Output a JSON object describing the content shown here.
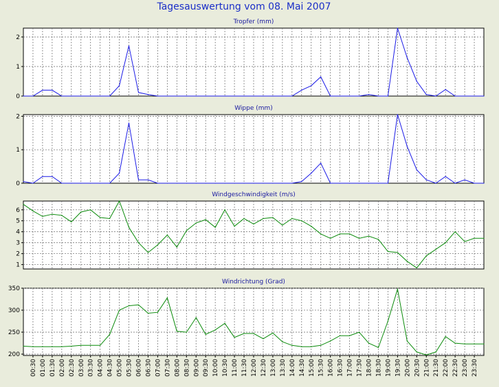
{
  "title": "Tagesauswertung vom 08. Mai 2007",
  "colors": {
    "blue": "#1a1ae6",
    "green": "#0a8a0a",
    "title": "#1a2ec8"
  },
  "x_tick_labels": [
    "00:30",
    "01:00",
    "01:30",
    "02:00",
    "02:30",
    "03:00",
    "03:30",
    "04:00",
    "04:30",
    "05:00",
    "05:30",
    "06:00",
    "06:30",
    "07:00",
    "07:30",
    "08:00",
    "08:30",
    "09:00",
    "09:30",
    "10:00",
    "10:30",
    "11:00",
    "11:30",
    "12:00",
    "12:30",
    "13:00",
    "13:30",
    "14:00",
    "14:30",
    "15:00",
    "15:30",
    "16:00",
    "16:30",
    "17:00",
    "17:30",
    "18:00",
    "18:30",
    "19:00",
    "19:30",
    "20:00",
    "20:30",
    "21:00",
    "21:30",
    "22:00",
    "22:30",
    "23:00",
    "23:30"
  ],
  "chart_data": [
    {
      "type": "line",
      "title": "Tropfer (mm)",
      "color": "#1a1ae6",
      "x": [
        "00:00",
        "00:30",
        "01:00",
        "01:30",
        "02:00",
        "02:30",
        "03:00",
        "03:30",
        "04:00",
        "04:30",
        "05:00",
        "05:30",
        "06:00",
        "06:30",
        "07:00",
        "07:30",
        "08:00",
        "08:30",
        "09:00",
        "09:30",
        "10:00",
        "10:30",
        "11:00",
        "11:30",
        "12:00",
        "12:30",
        "13:00",
        "13:30",
        "14:00",
        "14:30",
        "15:00",
        "15:30",
        "16:00",
        "16:30",
        "17:00",
        "17:30",
        "18:00",
        "18:30",
        "19:00",
        "19:30",
        "20:00",
        "20:30",
        "21:00",
        "21:30",
        "22:00",
        "22:30",
        "23:00",
        "23:30",
        "24:00"
      ],
      "values": [
        0,
        0,
        0.2,
        0.2,
        0,
        0,
        0,
        0,
        0,
        0,
        0.35,
        1.7,
        0.12,
        0.05,
        0,
        0,
        0,
        0,
        0,
        0,
        0,
        0,
        0,
        0,
        0,
        0,
        0,
        0,
        0,
        0.2,
        0.35,
        0.65,
        0,
        0,
        0,
        0,
        0.05,
        0,
        0,
        2.3,
        1.3,
        0.5,
        0.05,
        0,
        0.22,
        0,
        0,
        0,
        0
      ],
      "yticks": [
        0,
        1,
        2
      ],
      "ylim": [
        0,
        2.3
      ],
      "grid": true
    },
    {
      "type": "line",
      "title": "Wippe (mm)",
      "color": "#1a1ae6",
      "x": [
        "00:00",
        "00:30",
        "01:00",
        "01:30",
        "02:00",
        "02:30",
        "03:00",
        "03:30",
        "04:00",
        "04:30",
        "05:00",
        "05:30",
        "06:00",
        "06:30",
        "07:00",
        "07:30",
        "08:00",
        "08:30",
        "09:00",
        "09:30",
        "10:00",
        "10:30",
        "11:00",
        "11:30",
        "12:00",
        "12:30",
        "13:00",
        "13:30",
        "14:00",
        "14:30",
        "15:00",
        "15:30",
        "16:00",
        "16:30",
        "17:00",
        "17:30",
        "18:00",
        "18:30",
        "19:00",
        "19:30",
        "20:00",
        "20:30",
        "21:00",
        "21:30",
        "22:00",
        "22:30",
        "23:00",
        "23:30",
        "24:00"
      ],
      "values": [
        0.05,
        0,
        0.2,
        0.2,
        0,
        0,
        0,
        0,
        0,
        0,
        0.3,
        1.8,
        0.1,
        0.1,
        0,
        0,
        0,
        0,
        0,
        0,
        0,
        0,
        0,
        0,
        0,
        0,
        0,
        0,
        0,
        0.05,
        0.3,
        0.6,
        0,
        0,
        0,
        0,
        0,
        0,
        0,
        2.05,
        1.1,
        0.4,
        0.1,
        0,
        0.2,
        0,
        0.1,
        0,
        0
      ],
      "yticks": [
        0,
        1,
        2
      ],
      "ylim": [
        0,
        2.05
      ],
      "grid": true
    },
    {
      "type": "line",
      "title": "Windgeschwindigkeit (m/s)",
      "color": "#0a8a0a",
      "x": [
        "00:00",
        "00:30",
        "01:00",
        "01:30",
        "02:00",
        "02:30",
        "03:00",
        "03:30",
        "04:00",
        "04:30",
        "05:00",
        "05:30",
        "06:00",
        "06:30",
        "07:00",
        "07:30",
        "08:00",
        "08:30",
        "09:00",
        "09:30",
        "10:00",
        "10:30",
        "11:00",
        "11:30",
        "12:00",
        "12:30",
        "13:00",
        "13:30",
        "14:00",
        "14:30",
        "15:00",
        "15:30",
        "16:00",
        "16:30",
        "17:00",
        "17:30",
        "18:00",
        "18:30",
        "19:00",
        "19:30",
        "20:00",
        "20:30",
        "21:00",
        "21:30",
        "22:00",
        "22:30",
        "23:00",
        "23:30",
        "24:00"
      ],
      "values": [
        6.5,
        5.9,
        5.4,
        5.6,
        5.5,
        4.9,
        5.8,
        6.0,
        5.3,
        5.2,
        6.8,
        4.4,
        3.0,
        2.1,
        2.8,
        3.7,
        2.6,
        4.1,
        4.8,
        5.1,
        4.4,
        6.0,
        4.5,
        5.2,
        4.7,
        5.2,
        5.3,
        4.6,
        5.2,
        5.0,
        4.5,
        3.8,
        3.4,
        3.8,
        3.8,
        3.4,
        3.6,
        3.3,
        2.2,
        2.1,
        1.3,
        0.7,
        1.8,
        2.4,
        3.0,
        4.0,
        3.1,
        3.4,
        3.4
      ],
      "yticks": [
        1,
        2,
        3,
        4,
        5,
        6
      ],
      "ylim": [
        0.6,
        6.8
      ],
      "grid": true
    },
    {
      "type": "line",
      "title": "Windrichtung (Grad)",
      "color": "#0a8a0a",
      "x": [
        "00:00",
        "00:30",
        "01:00",
        "01:30",
        "02:00",
        "02:30",
        "03:00",
        "03:30",
        "04:00",
        "04:30",
        "05:00",
        "05:30",
        "06:00",
        "06:30",
        "07:00",
        "07:30",
        "08:00",
        "08:30",
        "09:00",
        "09:30",
        "10:00",
        "10:30",
        "11:00",
        "11:30",
        "12:00",
        "12:30",
        "13:00",
        "13:30",
        "14:00",
        "14:30",
        "15:00",
        "15:30",
        "16:00",
        "16:30",
        "17:00",
        "17:30",
        "18:00",
        "18:30",
        "19:00",
        "19:30",
        "20:00",
        "20:30",
        "21:00",
        "21:30",
        "22:00",
        "22:30",
        "23:00",
        "23:30",
        "24:00"
      ],
      "values": [
        218,
        217,
        217,
        217,
        217,
        218,
        220,
        220,
        220,
        245,
        300,
        310,
        312,
        293,
        295,
        328,
        252,
        250,
        283,
        245,
        255,
        270,
        238,
        247,
        247,
        235,
        248,
        228,
        220,
        217,
        217,
        220,
        230,
        242,
        242,
        250,
        225,
        215,
        275,
        348,
        230,
        205,
        198,
        205,
        240,
        225,
        223,
        223,
        223
      ],
      "yticks": [
        200,
        250,
        300,
        350
      ],
      "ylim": [
        197,
        350
      ],
      "grid": true
    }
  ]
}
